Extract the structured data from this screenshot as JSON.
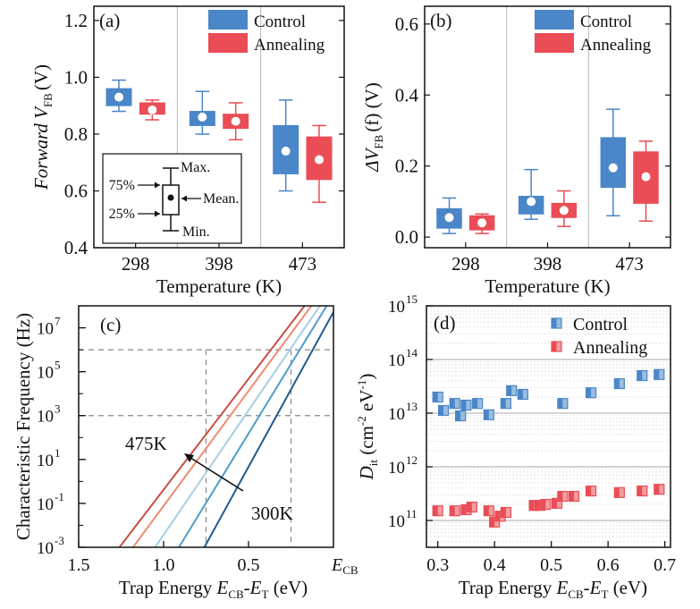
{
  "colors": {
    "control": "#4a86c8",
    "annealing": "#ea4d55",
    "axis": "#111111",
    "grid_dashed": "#888888",
    "temp_lines": [
      "#c84e44",
      "#ee8b70",
      "#a7cee6",
      "#4f9cc9",
      "#1f5b91"
    ]
  },
  "chart_data": [
    {
      "panel": "(a)",
      "type": "box",
      "ylabel_main": "Forward V",
      "ylabel_sub": "FB",
      "ylabel_unit": "(V)",
      "xlabel": "Temperature (K)",
      "categories": [
        "298",
        "398",
        "473"
      ],
      "ylim": [
        0.4,
        1.25
      ],
      "yticks": [
        "0.4",
        "0.6",
        "0.8",
        "1.0",
        "1.2"
      ],
      "legend": [
        "Control",
        "Annealing"
      ],
      "series": [
        {
          "name": "Control",
          "boxes": [
            {
              "min": 0.88,
              "q1": 0.9,
              "mean": 0.93,
              "q3": 0.96,
              "max": 0.99
            },
            {
              "min": 0.8,
              "q1": 0.83,
              "mean": 0.86,
              "q3": 0.88,
              "max": 0.95
            },
            {
              "min": 0.6,
              "q1": 0.66,
              "mean": 0.74,
              "q3": 0.83,
              "max": 0.92
            }
          ]
        },
        {
          "name": "Annealing",
          "boxes": [
            {
              "min": 0.85,
              "q1": 0.87,
              "mean": 0.885,
              "q3": 0.91,
              "max": 0.92
            },
            {
              "min": 0.78,
              "q1": 0.82,
              "mean": 0.845,
              "q3": 0.87,
              "max": 0.91
            },
            {
              "min": 0.56,
              "q1": 0.64,
              "mean": 0.71,
              "q3": 0.79,
              "max": 0.83
            }
          ]
        }
      ],
      "inset_labels": {
        "max": "Max.",
        "q3": "75%",
        "mean": "Mean.",
        "q1": "25%",
        "min": "Min."
      }
    },
    {
      "panel": "(b)",
      "type": "box",
      "ylabel_main": "ΔV",
      "ylabel_sub": "FB",
      "ylabel_unit": "(f) (V)",
      "xlabel": "Temperature (K)",
      "categories": [
        "298",
        "398",
        "473"
      ],
      "ylim": [
        -0.03,
        0.65
      ],
      "yticks": [
        "0.0",
        "0.2",
        "0.4",
        "0.6"
      ],
      "legend": [
        "Control",
        "Annealing"
      ],
      "series": [
        {
          "name": "Control",
          "boxes": [
            {
              "min": 0.01,
              "q1": 0.025,
              "mean": 0.055,
              "q3": 0.08,
              "max": 0.11
            },
            {
              "min": 0.05,
              "q1": 0.065,
              "mean": 0.1,
              "q3": 0.115,
              "max": 0.19
            },
            {
              "min": 0.06,
              "q1": 0.14,
              "mean": 0.195,
              "q3": 0.28,
              "max": 0.36
            }
          ]
        },
        {
          "name": "Annealing",
          "boxes": [
            {
              "min": 0.01,
              "q1": 0.02,
              "mean": 0.04,
              "q3": 0.06,
              "max": 0.065
            },
            {
              "min": 0.03,
              "q1": 0.055,
              "mean": 0.075,
              "q3": 0.095,
              "max": 0.13
            },
            {
              "min": 0.045,
              "q1": 0.095,
              "mean": 0.17,
              "q3": 0.24,
              "max": 0.27
            }
          ]
        }
      ]
    },
    {
      "panel": "(c)",
      "type": "line",
      "ylabel": "Characteristic Frequency (Hz)",
      "xlabel_main": "Trap Energy E",
      "xlabel_sub1": "CB",
      "xlabel_mid": "-E",
      "xlabel_sub2": "T",
      "xlabel_unit": " (eV)",
      "x_axis_reversed": true,
      "xlim": [
        1.5,
        0.0
      ],
      "ylim_log10": [
        -3,
        8
      ],
      "xticks": [
        "1.5",
        "1.0",
        "0.5"
      ],
      "x_end_label": "E",
      "x_end_label_sub": "CB",
      "yticks_exp": [
        -3,
        -1,
        1,
        3,
        5,
        7
      ],
      "guides": {
        "x_values": [
          0.75,
          0.25
        ],
        "y_log10": [
          3,
          6
        ]
      },
      "annotations": [
        "475K",
        "300K"
      ],
      "series": [
        {
          "points": [
            [
              1.26,
              -3
            ],
            [
              0.17,
              8
            ]
          ]
        },
        {
          "points": [
            [
              1.18,
              -3
            ],
            [
              0.13,
              8
            ]
          ]
        },
        {
          "points": [
            [
              1.05,
              -3
            ],
            [
              0.08,
              8
            ]
          ]
        },
        {
          "points": [
            [
              0.91,
              -3
            ],
            [
              0.04,
              8
            ]
          ]
        },
        {
          "points": [
            [
              0.76,
              -3
            ],
            [
              -0.02,
              8
            ]
          ]
        }
      ]
    },
    {
      "panel": "(d)",
      "type": "scatter",
      "ylabel_main": "D",
      "ylabel_sub": "it",
      "ylabel_unit": "(cm",
      "ylabel_sup1": "-2",
      "ylabel_mid": " eV",
      "ylabel_sup2": "-1",
      "ylabel_end": ")",
      "xlabel_main": "Trap Energy E",
      "xlabel_sub1": "CB",
      "xlabel_mid": "-E",
      "xlabel_sub2": "T",
      "xlabel_unit": " (eV)",
      "xlim": [
        0.28,
        0.71
      ],
      "ylim_log10": [
        10.5,
        15
      ],
      "xticks": [
        "0.3",
        "0.4",
        "0.5",
        "0.6",
        "0.7"
      ],
      "yticks_exp": [
        11,
        12,
        13,
        14,
        15
      ],
      "legend": [
        "Control",
        "Annealing"
      ],
      "series": [
        {
          "name": "Control",
          "points": [
            [
              0.3,
              13.3
            ],
            [
              0.31,
              13.05
            ],
            [
              0.33,
              13.18
            ],
            [
              0.34,
              12.95
            ],
            [
              0.35,
              13.15
            ],
            [
              0.37,
              13.18
            ],
            [
              0.39,
              12.97
            ],
            [
              0.42,
              13.18
            ],
            [
              0.43,
              13.42
            ],
            [
              0.45,
              13.35
            ],
            [
              0.52,
              13.18
            ],
            [
              0.57,
              13.38
            ],
            [
              0.62,
              13.55
            ],
            [
              0.66,
              13.7
            ],
            [
              0.69,
              13.72
            ]
          ]
        },
        {
          "name": "Annealing",
          "points": [
            [
              0.3,
              11.18
            ],
            [
              0.33,
              11.18
            ],
            [
              0.35,
              11.2
            ],
            [
              0.36,
              11.25
            ],
            [
              0.39,
              11.18
            ],
            [
              0.4,
              10.97
            ],
            [
              0.41,
              11.08
            ],
            [
              0.42,
              11.15
            ],
            [
              0.47,
              11.28
            ],
            [
              0.48,
              11.28
            ],
            [
              0.49,
              11.3
            ],
            [
              0.51,
              11.32
            ],
            [
              0.52,
              11.45
            ],
            [
              0.54,
              11.45
            ],
            [
              0.57,
              11.55
            ],
            [
              0.62,
              11.52
            ],
            [
              0.66,
              11.55
            ],
            [
              0.69,
              11.58
            ]
          ]
        }
      ]
    }
  ]
}
